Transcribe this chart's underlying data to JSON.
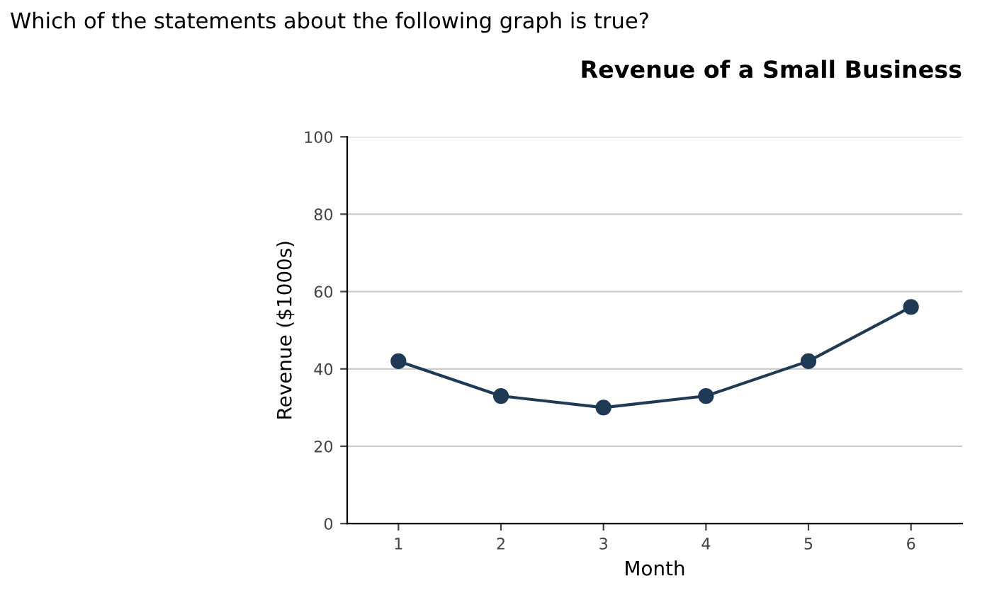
{
  "chart_data": {
    "type": "line",
    "title": "Revenue of a Small Business",
    "xlabel": "Month",
    "ylabel": "Revenue ($1000s)",
    "annotations": [
      "Which of the statements about the following graph is true?"
    ],
    "x": [
      1,
      2,
      3,
      4,
      5,
      6
    ],
    "series": [
      {
        "color": "#1f3a55",
        "values": [
          42,
          33,
          30,
          33,
          42,
          56
        ]
      }
    ],
    "xlim": [
      0.5,
      6.5
    ],
    "xticks": [
      1,
      2,
      3,
      4,
      5,
      6
    ],
    "ylim": [
      0,
      100
    ],
    "yticks": [
      0,
      20,
      40,
      60,
      80,
      100
    ],
    "grid": "y",
    "marker": "circle",
    "line_style": "solid",
    "legend": false
  }
}
